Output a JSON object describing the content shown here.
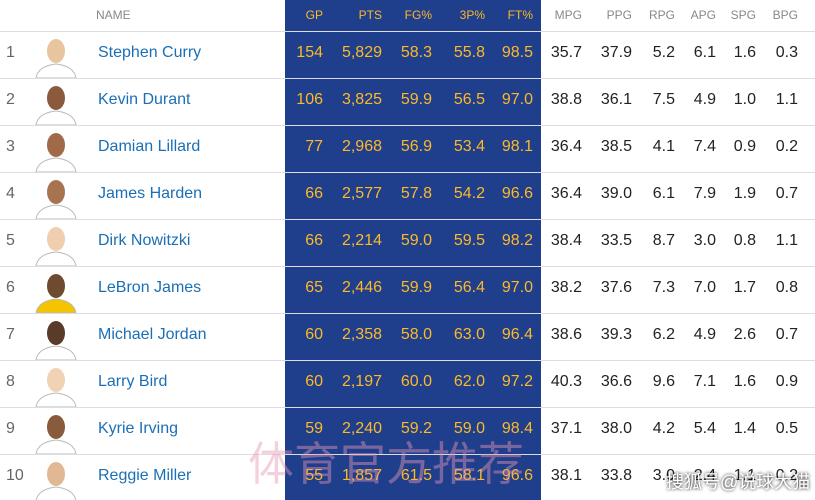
{
  "header": {
    "columns": [
      "NAME",
      "GP",
      "PTS",
      "FG%",
      "3P%",
      "FT%",
      "MPG",
      "PPG",
      "RPG",
      "APG",
      "SPG",
      "BPG"
    ]
  },
  "rows": [
    {
      "rank": "1",
      "name": "Stephen Curry",
      "stats": [
        "154",
        "5,829",
        "58.3",
        "55.8",
        "98.5",
        "35.7",
        "37.9",
        "5.2",
        "6.1",
        "1.6",
        "0.3"
      ]
    },
    {
      "rank": "2",
      "name": "Kevin Durant",
      "stats": [
        "106",
        "3,825",
        "59.9",
        "56.5",
        "97.0",
        "38.8",
        "36.1",
        "7.5",
        "4.9",
        "1.0",
        "1.1"
      ]
    },
    {
      "rank": "3",
      "name": "Damian Lillard",
      "stats": [
        "77",
        "2,968",
        "56.9",
        "53.4",
        "98.1",
        "36.4",
        "38.5",
        "4.1",
        "7.4",
        "0.9",
        "0.2"
      ]
    },
    {
      "rank": "4",
      "name": "James Harden",
      "stats": [
        "66",
        "2,577",
        "57.8",
        "54.2",
        "96.6",
        "36.4",
        "39.0",
        "6.1",
        "7.9",
        "1.9",
        "0.7"
      ]
    },
    {
      "rank": "5",
      "name": "Dirk Nowitzki",
      "stats": [
        "66",
        "2,214",
        "59.0",
        "59.5",
        "98.2",
        "38.4",
        "33.5",
        "8.7",
        "3.0",
        "0.8",
        "1.1"
      ]
    },
    {
      "rank": "6",
      "name": "LeBron James",
      "stats": [
        "65",
        "2,446",
        "59.9",
        "56.4",
        "97.0",
        "38.2",
        "37.6",
        "7.3",
        "7.0",
        "1.7",
        "0.8"
      ]
    },
    {
      "rank": "7",
      "name": "Michael Jordan",
      "stats": [
        "60",
        "2,358",
        "58.0",
        "63.0",
        "96.4",
        "38.6",
        "39.3",
        "6.2",
        "4.9",
        "2.6",
        "0.7"
      ]
    },
    {
      "rank": "8",
      "name": "Larry Bird",
      "stats": [
        "60",
        "2,197",
        "60.0",
        "62.0",
        "97.2",
        "40.3",
        "36.6",
        "9.6",
        "7.1",
        "1.6",
        "0.9"
      ]
    },
    {
      "rank": "9",
      "name": "Kyrie Irving",
      "stats": [
        "59",
        "2,240",
        "59.2",
        "59.0",
        "98.4",
        "37.1",
        "38.0",
        "4.2",
        "5.4",
        "1.4",
        "0.5"
      ]
    },
    {
      "rank": "10",
      "name": "Reggie Miller",
      "stats": [
        "55",
        "1,857",
        "61.5",
        "58.1",
        "96.6",
        "38.1",
        "33.8",
        "3.0",
        "2.4",
        "1.1",
        "0.2"
      ]
    }
  ],
  "watermarks": [
    "体育官方推荐",
    "搜狐号@说球大猫"
  ]
}
